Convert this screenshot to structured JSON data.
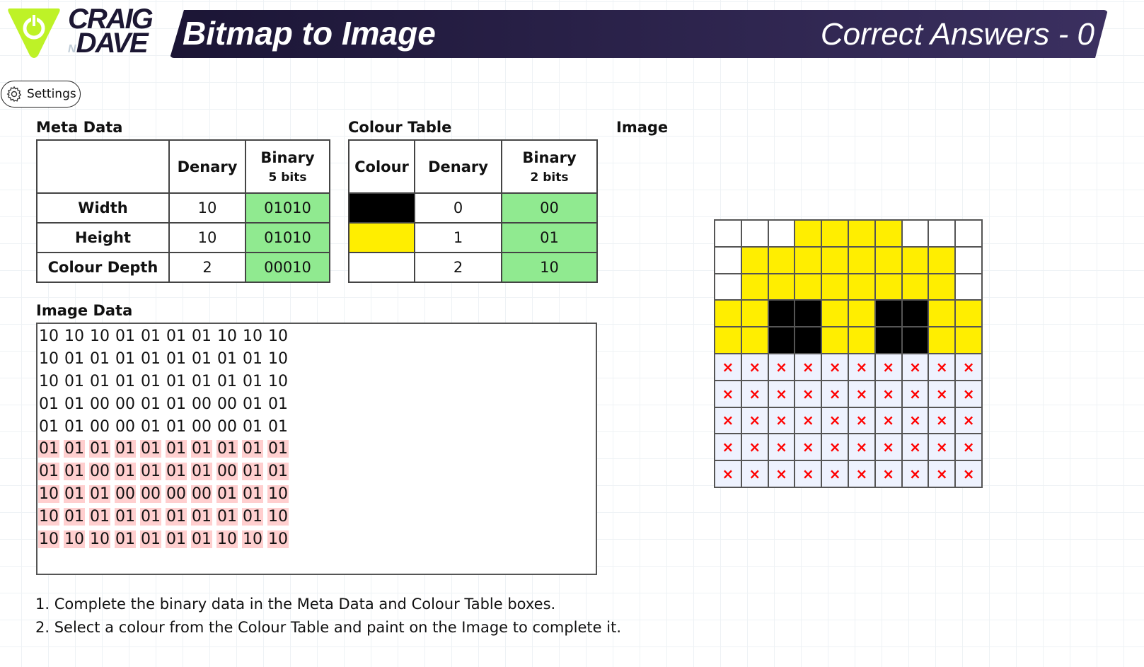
{
  "brand": {
    "line1": "CRAIG",
    "n": "N",
    "line2": "DAVE"
  },
  "header": {
    "title": "Bitmap to Image",
    "score": "Correct Answers - 0"
  },
  "settings": {
    "label": "Settings"
  },
  "colors": {
    "0": "#000000",
    "1": "#ffee00",
    "2": "#ffffff",
    "accent": "#bef227",
    "correct": "#90ea90",
    "highlight": "#ffcfcf",
    "unpainted_mark": "#ff0000"
  },
  "meta": {
    "label": "Meta Data",
    "headers": [
      "",
      "Denary",
      "Binary",
      "5 bits"
    ],
    "rows": [
      {
        "name": "Width",
        "denary": "10",
        "binary": "01010"
      },
      {
        "name": "Height",
        "denary": "10",
        "binary": "01010"
      },
      {
        "name": "Colour Depth",
        "denary": "2",
        "binary": "00010"
      }
    ]
  },
  "colour_table": {
    "label": "Colour Table",
    "headers": [
      "Colour",
      "Denary",
      "Binary",
      "2 bits"
    ],
    "rows": [
      {
        "colour": "#000000",
        "denary": "0",
        "binary": "00"
      },
      {
        "colour": "#ffee00",
        "denary": "1",
        "binary": "01"
      },
      {
        "colour": "#ffffff",
        "denary": "2",
        "binary": "10"
      }
    ]
  },
  "image_data": {
    "label": "Image Data",
    "rows": [
      {
        "highlighted": false,
        "values": [
          "10",
          "10",
          "10",
          "01",
          "01",
          "01",
          "01",
          "10",
          "10",
          "10"
        ]
      },
      {
        "highlighted": false,
        "values": [
          "10",
          "01",
          "01",
          "01",
          "01",
          "01",
          "01",
          "01",
          "01",
          "10"
        ]
      },
      {
        "highlighted": false,
        "values": [
          "10",
          "01",
          "01",
          "01",
          "01",
          "01",
          "01",
          "01",
          "01",
          "10"
        ]
      },
      {
        "highlighted": false,
        "values": [
          "01",
          "01",
          "00",
          "00",
          "01",
          "01",
          "00",
          "00",
          "01",
          "01"
        ]
      },
      {
        "highlighted": false,
        "values": [
          "01",
          "01",
          "00",
          "00",
          "01",
          "01",
          "00",
          "00",
          "01",
          "01"
        ]
      },
      {
        "highlighted": true,
        "values": [
          "01",
          "01",
          "01",
          "01",
          "01",
          "01",
          "01",
          "01",
          "01",
          "01"
        ]
      },
      {
        "highlighted": true,
        "values": [
          "01",
          "01",
          "00",
          "01",
          "01",
          "01",
          "01",
          "00",
          "01",
          "01"
        ]
      },
      {
        "highlighted": true,
        "values": [
          "10",
          "01",
          "01",
          "00",
          "00",
          "00",
          "00",
          "01",
          "01",
          "10"
        ]
      },
      {
        "highlighted": true,
        "values": [
          "10",
          "01",
          "01",
          "01",
          "01",
          "01",
          "01",
          "01",
          "01",
          "10"
        ]
      },
      {
        "highlighted": true,
        "values": [
          "10",
          "10",
          "10",
          "01",
          "01",
          "01",
          "01",
          "10",
          "10",
          "10"
        ]
      }
    ]
  },
  "image": {
    "label": "Image",
    "unpainted_mark": "×",
    "pixels": [
      [
        2,
        2,
        2,
        1,
        1,
        1,
        1,
        2,
        2,
        2
      ],
      [
        2,
        1,
        1,
        1,
        1,
        1,
        1,
        1,
        1,
        2
      ],
      [
        2,
        1,
        1,
        1,
        1,
        1,
        1,
        1,
        1,
        2
      ],
      [
        1,
        1,
        0,
        0,
        1,
        1,
        0,
        0,
        1,
        1
      ],
      [
        1,
        1,
        0,
        0,
        1,
        1,
        0,
        0,
        1,
        1
      ],
      [
        null,
        null,
        null,
        null,
        null,
        null,
        null,
        null,
        null,
        null
      ],
      [
        null,
        null,
        null,
        null,
        null,
        null,
        null,
        null,
        null,
        null
      ],
      [
        null,
        null,
        null,
        null,
        null,
        null,
        null,
        null,
        null,
        null
      ],
      [
        null,
        null,
        null,
        null,
        null,
        null,
        null,
        null,
        null,
        null
      ],
      [
        null,
        null,
        null,
        null,
        null,
        null,
        null,
        null,
        null,
        null
      ]
    ]
  },
  "instructions": [
    "1. Complete the binary data in the Meta Data and Colour Table boxes.",
    "2. Select a colour from the Colour Table and paint on the Image to complete it."
  ]
}
